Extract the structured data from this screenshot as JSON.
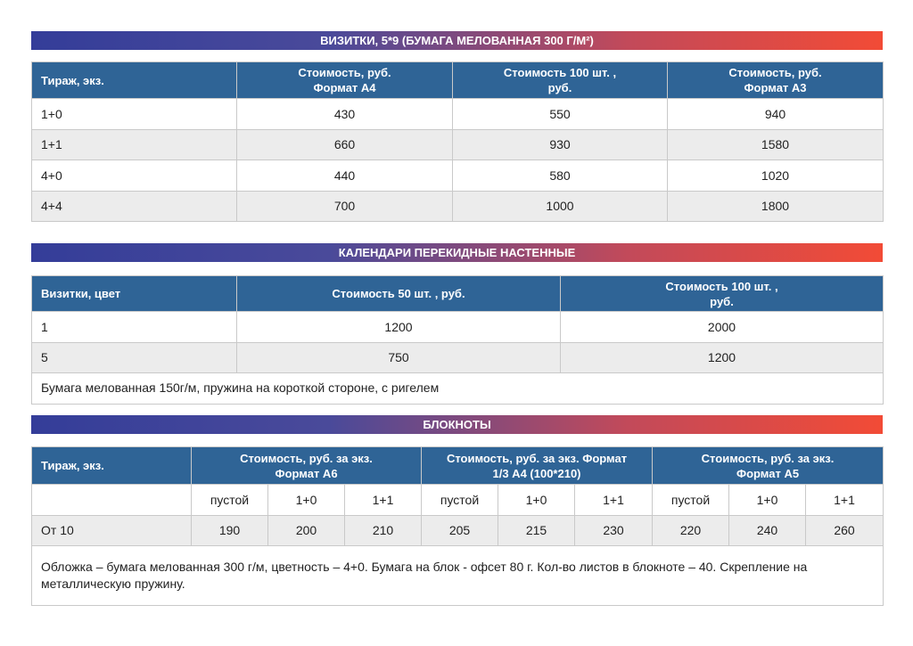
{
  "colors": {
    "header": "#2f6496",
    "banner_start": "#343d99",
    "banner_end": "#f24b36",
    "stripe": "#ececec"
  },
  "s1": {
    "title": "ВИЗИТКИ, 5*9 (БУМАГА МЕЛОВАННАЯ 300 Г/М²)",
    "headers": [
      "Тираж, экз.",
      "Стоимость, руб.\nФормат А4",
      "Стоимость 100 шт. ,\nруб.",
      "Стоимость, руб.\nФормат А3"
    ],
    "rows": [
      [
        "1+0",
        "430",
        "550",
        "940"
      ],
      [
        "1+1",
        "660",
        "930",
        "1580"
      ],
      [
        "4+0",
        "440",
        "580",
        "1020"
      ],
      [
        "4+4",
        "700",
        "1000",
        "1800"
      ]
    ]
  },
  "s2": {
    "title": "КАЛЕНДАРИ ПЕРЕКИДНЫЕ НАСТЕННЫЕ",
    "headers": [
      "Визитки, цвет",
      "Стоимость 50 шт. , руб.",
      "Стоимость 100 шт. ,\nруб."
    ],
    "rows": [
      [
        "1",
        "1200",
        "2000"
      ],
      [
        "5",
        "750",
        "1200"
      ]
    ],
    "note": "Бумага мелованная 150г/м, пружина на короткой стороне, с ригелем"
  },
  "s3": {
    "title": "БЛОКНОТЫ",
    "headers": [
      "Тираж, экз.",
      "Стоимость, руб. за экз.\nФормат А6",
      "Стоимость, руб. за экз. Формат\n1/3 А4 (100*210)",
      "Стоимость, руб. за экз.\nФормат А5"
    ],
    "sub": [
      "пустой",
      "1+0",
      "1+1",
      "пустой",
      "1+0",
      "1+1",
      "пустой",
      "1+0",
      "1+1"
    ],
    "row": [
      "От 10",
      "190",
      "200",
      "210",
      "205",
      "215",
      "230",
      "220",
      "240",
      "260"
    ],
    "note": "Обложка – бумага мелованная 300 г/м, цветность – 4+0. Бумага на блок - офсет 80 г. Кол-во листов в блокноте – 40. Скрепление на металлическую пружину."
  }
}
